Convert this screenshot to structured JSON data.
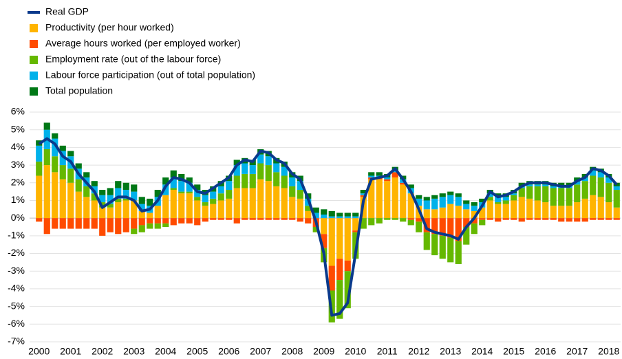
{
  "chart_data": {
    "type": "stacked-bar-line",
    "categories": [
      "2000",
      null,
      null,
      null,
      "2001",
      null,
      null,
      null,
      "2002",
      null,
      null,
      null,
      "2003",
      null,
      null,
      null,
      "2004",
      null,
      null,
      null,
      "2005",
      null,
      null,
      null,
      "2006",
      null,
      null,
      null,
      "2007",
      null,
      null,
      null,
      "2008",
      null,
      null,
      null,
      "2009",
      null,
      null,
      null,
      "2010",
      null,
      null,
      null,
      "2011",
      null,
      null,
      null,
      "2012",
      null,
      null,
      null,
      "2013",
      null,
      null,
      null,
      "2014",
      null,
      null,
      null,
      "2015",
      null,
      null,
      null,
      "2016",
      null,
      null,
      null,
      "2017",
      null,
      null,
      null,
      "2018",
      null
    ],
    "ylim": [
      -7,
      6
    ],
    "yticks": [
      {
        "value": -7,
        "label": "-7%"
      },
      {
        "value": -6,
        "label": "-6%"
      },
      {
        "value": -5,
        "label": "-5%"
      },
      {
        "value": -4,
        "label": "-4%"
      },
      {
        "value": -3,
        "label": "-3%"
      },
      {
        "value": -2,
        "label": "-2%"
      },
      {
        "value": -1,
        "label": "-1%"
      },
      {
        "value": 0,
        "label": "0%"
      },
      {
        "value": 1,
        "label": "1%"
      },
      {
        "value": 2,
        "label": "2%"
      },
      {
        "value": 3,
        "label": "3%"
      },
      {
        "value": 4,
        "label": "4%"
      },
      {
        "value": 5,
        "label": "5%"
      },
      {
        "value": 6,
        "label": "6%"
      }
    ],
    "grid": true,
    "legend": "top-left",
    "series": [
      {
        "name": "Real GDP",
        "type": "line",
        "color": "#0a3a8c",
        "values": [
          4.2,
          4.5,
          4.2,
          3.5,
          3.2,
          2.5,
          2.0,
          1.5,
          0.6,
          0.9,
          1.2,
          1.2,
          1.0,
          0.4,
          0.5,
          1.0,
          1.8,
          2.3,
          2.2,
          2.0,
          1.5,
          1.4,
          1.7,
          2.0,
          2.3,
          3.0,
          3.3,
          3.2,
          3.8,
          3.7,
          3.3,
          3.1,
          2.5,
          2.2,
          1.1,
          -0.2,
          -2.0,
          -5.5,
          -5.4,
          -4.8,
          -2.0,
          1.0,
          2.2,
          2.3,
          2.4,
          2.8,
          2.2,
          1.5,
          0.5,
          -0.6,
          -0.8,
          -0.9,
          -1.0,
          -1.2,
          -0.5,
          0.0,
          0.7,
          1.5,
          1.2,
          1.3,
          1.5,
          1.8,
          2.0,
          2.0,
          2.0,
          1.9,
          1.8,
          1.8,
          2.1,
          2.3,
          2.8,
          2.7,
          2.4,
          1.9
        ]
      },
      {
        "name": "Productivity (per hour worked)",
        "type": "bar",
        "color": "#ffb400",
        "values": [
          2.4,
          3.0,
          2.6,
          2.2,
          2.0,
          1.5,
          1.2,
          1.0,
          0.6,
          0.6,
          0.9,
          1.0,
          1.0,
          0.4,
          0.3,
          0.7,
          1.3,
          1.6,
          1.4,
          1.4,
          1.0,
          0.7,
          0.8,
          1.0,
          1.1,
          1.7,
          1.7,
          1.7,
          2.2,
          2.1,
          1.8,
          1.7,
          1.2,
          1.1,
          0.4,
          0.0,
          -0.9,
          -2.7,
          -2.3,
          -2.4,
          -0.7,
          1.2,
          2.2,
          2.2,
          2.1,
          2.3,
          1.9,
          1.4,
          0.7,
          0.5,
          0.5,
          0.6,
          0.8,
          0.7,
          0.5,
          0.4,
          0.6,
          1.0,
          0.8,
          0.8,
          1.0,
          1.2,
          1.1,
          1.0,
          0.9,
          0.7,
          0.7,
          0.7,
          0.9,
          1.1,
          1.3,
          1.2,
          0.9,
          0.6
        ]
      },
      {
        "name": "Average hours worked (per employed worker)",
        "type": "bar",
        "color": "#ff4b00",
        "values": [
          -0.2,
          -0.9,
          -0.6,
          -0.6,
          -0.6,
          -0.6,
          -0.6,
          -0.6,
          -1.0,
          -0.8,
          -0.9,
          -0.8,
          -0.6,
          -0.4,
          -0.3,
          -0.3,
          -0.3,
          -0.4,
          -0.3,
          -0.3,
          -0.4,
          -0.2,
          -0.1,
          -0.1,
          -0.1,
          -0.3,
          -0.1,
          -0.1,
          -0.1,
          -0.1,
          -0.1,
          -0.1,
          -0.1,
          -0.2,
          -0.3,
          -0.5,
          -0.8,
          -1.4,
          -1.2,
          -0.6,
          -0.1,
          0.1,
          0.1,
          0.1,
          0.1,
          0.3,
          0.1,
          -0.1,
          -0.2,
          -0.8,
          -0.9,
          -1.0,
          -1.1,
          -1.3,
          -0.5,
          -0.3,
          -0.1,
          -0.1,
          -0.2,
          -0.1,
          -0.1,
          -0.2,
          -0.1,
          -0.1,
          -0.1,
          -0.1,
          -0.2,
          -0.2,
          -0.2,
          -0.2,
          -0.1,
          -0.1,
          -0.1,
          -0.1
        ]
      },
      {
        "name": "Employment rate (out of the labour force)",
        "type": "bar",
        "color": "#65b800",
        "values": [
          0.8,
          0.9,
          0.9,
          0.8,
          0.8,
          0.7,
          0.6,
          0.4,
          0.3,
          0.2,
          0.2,
          0.1,
          -0.3,
          -0.4,
          -0.3,
          -0.3,
          -0.2,
          0.1,
          0.1,
          0.1,
          0.2,
          0.2,
          0.3,
          0.4,
          0.5,
          0.7,
          0.8,
          0.8,
          0.9,
          0.9,
          0.8,
          0.7,
          0.6,
          0.5,
          0.3,
          -0.3,
          -0.8,
          -1.8,
          -2.2,
          -2.1,
          -1.5,
          -0.6,
          -0.4,
          -0.3,
          -0.1,
          -0.1,
          -0.2,
          -0.3,
          -0.6,
          -1.0,
          -1.2,
          -1.3,
          -1.4,
          -1.3,
          -1.0,
          -0.6,
          -0.3,
          0.2,
          0.1,
          0.2,
          0.3,
          0.5,
          0.7,
          0.8,
          0.9,
          1.0,
          1.0,
          1.0,
          1.0,
          1.0,
          1.1,
          1.1,
          1.1,
          1.0
        ]
      },
      {
        "name": "Labour force participation (out of total population)",
        "type": "bar",
        "color": "#00b1ea",
        "values": [
          0.9,
          1.1,
          1.0,
          0.8,
          0.7,
          0.6,
          0.5,
          0.4,
          0.4,
          0.5,
          0.6,
          0.5,
          0.5,
          0.4,
          0.4,
          0.5,
          0.6,
          0.6,
          0.6,
          0.5,
          0.4,
          0.4,
          0.4,
          0.4,
          0.5,
          0.6,
          0.6,
          0.5,
          0.5,
          0.5,
          0.5,
          0.5,
          0.5,
          0.5,
          0.4,
          0.3,
          0.2,
          0.1,
          0.1,
          0.1,
          0.1,
          0.1,
          0.1,
          0.1,
          0.1,
          0.1,
          0.2,
          0.3,
          0.4,
          0.5,
          0.6,
          0.6,
          0.5,
          0.5,
          0.3,
          0.3,
          0.3,
          0.2,
          0.3,
          0.2,
          0.1,
          0.1,
          0.1,
          0.1,
          0.1,
          0.1,
          0.1,
          0.1,
          0.2,
          0.2,
          0.3,
          0.3,
          0.3,
          0.2
        ]
      },
      {
        "name": "Total population",
        "type": "bar",
        "color": "#007816",
        "values": [
          0.3,
          0.4,
          0.3,
          0.3,
          0.3,
          0.3,
          0.3,
          0.3,
          0.3,
          0.4,
          0.4,
          0.4,
          0.4,
          0.4,
          0.4,
          0.4,
          0.4,
          0.4,
          0.4,
          0.3,
          0.3,
          0.3,
          0.3,
          0.3,
          0.3,
          0.3,
          0.3,
          0.3,
          0.3,
          0.3,
          0.3,
          0.3,
          0.3,
          0.3,
          0.3,
          0.3,
          0.3,
          0.3,
          0.2,
          0.2,
          0.2,
          0.2,
          0.2,
          0.2,
          0.2,
          0.2,
          0.2,
          0.2,
          0.2,
          0.2,
          0.2,
          0.2,
          0.2,
          0.2,
          0.2,
          0.2,
          0.2,
          0.2,
          0.2,
          0.2,
          0.2,
          0.2,
          0.2,
          0.2,
          0.2,
          0.2,
          0.2,
          0.2,
          0.2,
          0.2,
          0.2,
          0.2,
          0.2,
          0.2
        ]
      }
    ]
  }
}
